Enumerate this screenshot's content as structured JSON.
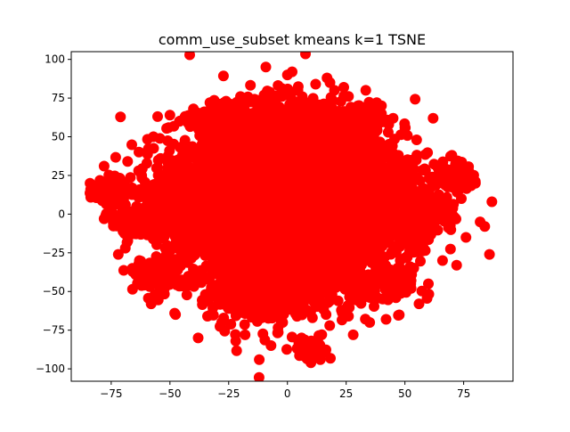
{
  "chart_data": {
    "type": "scatter",
    "title": "comm_use_subset kmeans k=1 TSNE",
    "xlabel": "",
    "ylabel": "",
    "xlim": [
      -92,
      96
    ],
    "ylim": [
      -108,
      105
    ],
    "xticks": [
      -75,
      -50,
      -25,
      0,
      25,
      50,
      75
    ],
    "yticks": [
      -100,
      -75,
      -50,
      -25,
      0,
      25,
      50,
      75,
      100
    ],
    "grid": false,
    "legend": "none",
    "series": [
      {
        "color": "#ff0000",
        "clusters": [
          {
            "x": 0,
            "y": 5,
            "rx": 42,
            "ry": 55,
            "n": 2600
          },
          {
            "x": -20,
            "y": 10,
            "rx": 35,
            "ry": 48,
            "n": 900
          },
          {
            "x": 20,
            "y": 5,
            "rx": 32,
            "ry": 50,
            "n": 900
          },
          {
            "x": 0,
            "y": 55,
            "rx": 28,
            "ry": 20,
            "n": 500
          },
          {
            "x": -5,
            "y": -45,
            "rx": 32,
            "ry": 22,
            "n": 500
          },
          {
            "x": -45,
            "y": 5,
            "rx": 18,
            "ry": 25,
            "n": 300
          },
          {
            "x": 40,
            "y": 10,
            "rx": 15,
            "ry": 30,
            "n": 300
          },
          {
            "x": -65,
            "y": -5,
            "rx": 10,
            "ry": 8,
            "n": 150
          },
          {
            "x": -75,
            "y": 15,
            "rx": 8,
            "ry": 8,
            "n": 80
          },
          {
            "x": 60,
            "y": 0,
            "rx": 12,
            "ry": 15,
            "n": 120
          },
          {
            "x": 70,
            "y": 25,
            "rx": 10,
            "ry": 10,
            "n": 80
          },
          {
            "x": 10,
            "y": -88,
            "rx": 7,
            "ry": 6,
            "n": 70
          },
          {
            "x": -55,
            "y": -40,
            "rx": 10,
            "ry": 10,
            "n": 90
          },
          {
            "x": 45,
            "y": -45,
            "rx": 10,
            "ry": 10,
            "n": 90
          },
          {
            "x": -30,
            "y": 60,
            "rx": 10,
            "ry": 10,
            "n": 80
          },
          {
            "x": 30,
            "y": 60,
            "rx": 10,
            "ry": 10,
            "n": 80
          }
        ],
        "points": [
          [
            -84,
            20
          ],
          [
            -80,
            19
          ],
          [
            -78,
            31
          ],
          [
            -76,
            22
          ],
          [
            -78,
            -3
          ],
          [
            -74,
            -5
          ],
          [
            -72,
            -26
          ],
          [
            -69,
            -22
          ],
          [
            -68,
            34
          ],
          [
            -66,
            -35
          ],
          [
            -60,
            40
          ],
          [
            -58,
            -58
          ],
          [
            -57,
            50
          ],
          [
            -56,
            18
          ],
          [
            -54,
            36
          ],
          [
            -52,
            -22
          ],
          [
            -50,
            64
          ],
          [
            -48,
            -64
          ],
          [
            -46,
            60
          ],
          [
            -45,
            -44
          ],
          [
            -38,
            -80
          ],
          [
            -37,
            58
          ],
          [
            -34,
            -66
          ],
          [
            -33,
            72
          ],
          [
            -28,
            -70
          ],
          [
            -22,
            -82
          ],
          [
            -20,
            76
          ],
          [
            -18,
            -78
          ],
          [
            -12,
            -94
          ],
          [
            -10,
            72
          ],
          [
            -7,
            -85
          ],
          [
            0,
            90
          ],
          [
            2,
            92
          ],
          [
            4,
            80
          ],
          [
            6,
            -80
          ],
          [
            8,
            -92
          ],
          [
            10,
            -96
          ],
          [
            12,
            84
          ],
          [
            14,
            -94
          ],
          [
            18,
            -72
          ],
          [
            20,
            80
          ],
          [
            24,
            82
          ],
          [
            26,
            -66
          ],
          [
            28,
            -78
          ],
          [
            30,
            70
          ],
          [
            35,
            -70
          ],
          [
            40,
            65
          ],
          [
            42,
            -68
          ],
          [
            45,
            62
          ],
          [
            48,
            -30
          ],
          [
            50,
            56
          ],
          [
            52,
            -24
          ],
          [
            55,
            48
          ],
          [
            56,
            -58
          ],
          [
            58,
            -22
          ],
          [
            60,
            -45
          ],
          [
            62,
            62
          ],
          [
            64,
            30
          ],
          [
            66,
            -30
          ],
          [
            68,
            5
          ],
          [
            70,
            38
          ],
          [
            72,
            -33
          ],
          [
            74,
            10
          ],
          [
            76,
            -15
          ],
          [
            78,
            23
          ],
          [
            80,
            20
          ],
          [
            82,
            -5
          ],
          [
            84,
            -8
          ],
          [
            86,
            -26
          ],
          [
            87,
            8
          ],
          [
            60,
            5
          ],
          [
            65,
            10
          ],
          [
            -63,
            -30
          ],
          [
            -70,
            10
          ],
          [
            -62,
            25
          ],
          [
            -40,
            68
          ],
          [
            38,
            72
          ],
          [
            16,
            -58
          ],
          [
            -15,
            -60
          ],
          [
            -2,
            -70
          ]
        ]
      }
    ]
  }
}
